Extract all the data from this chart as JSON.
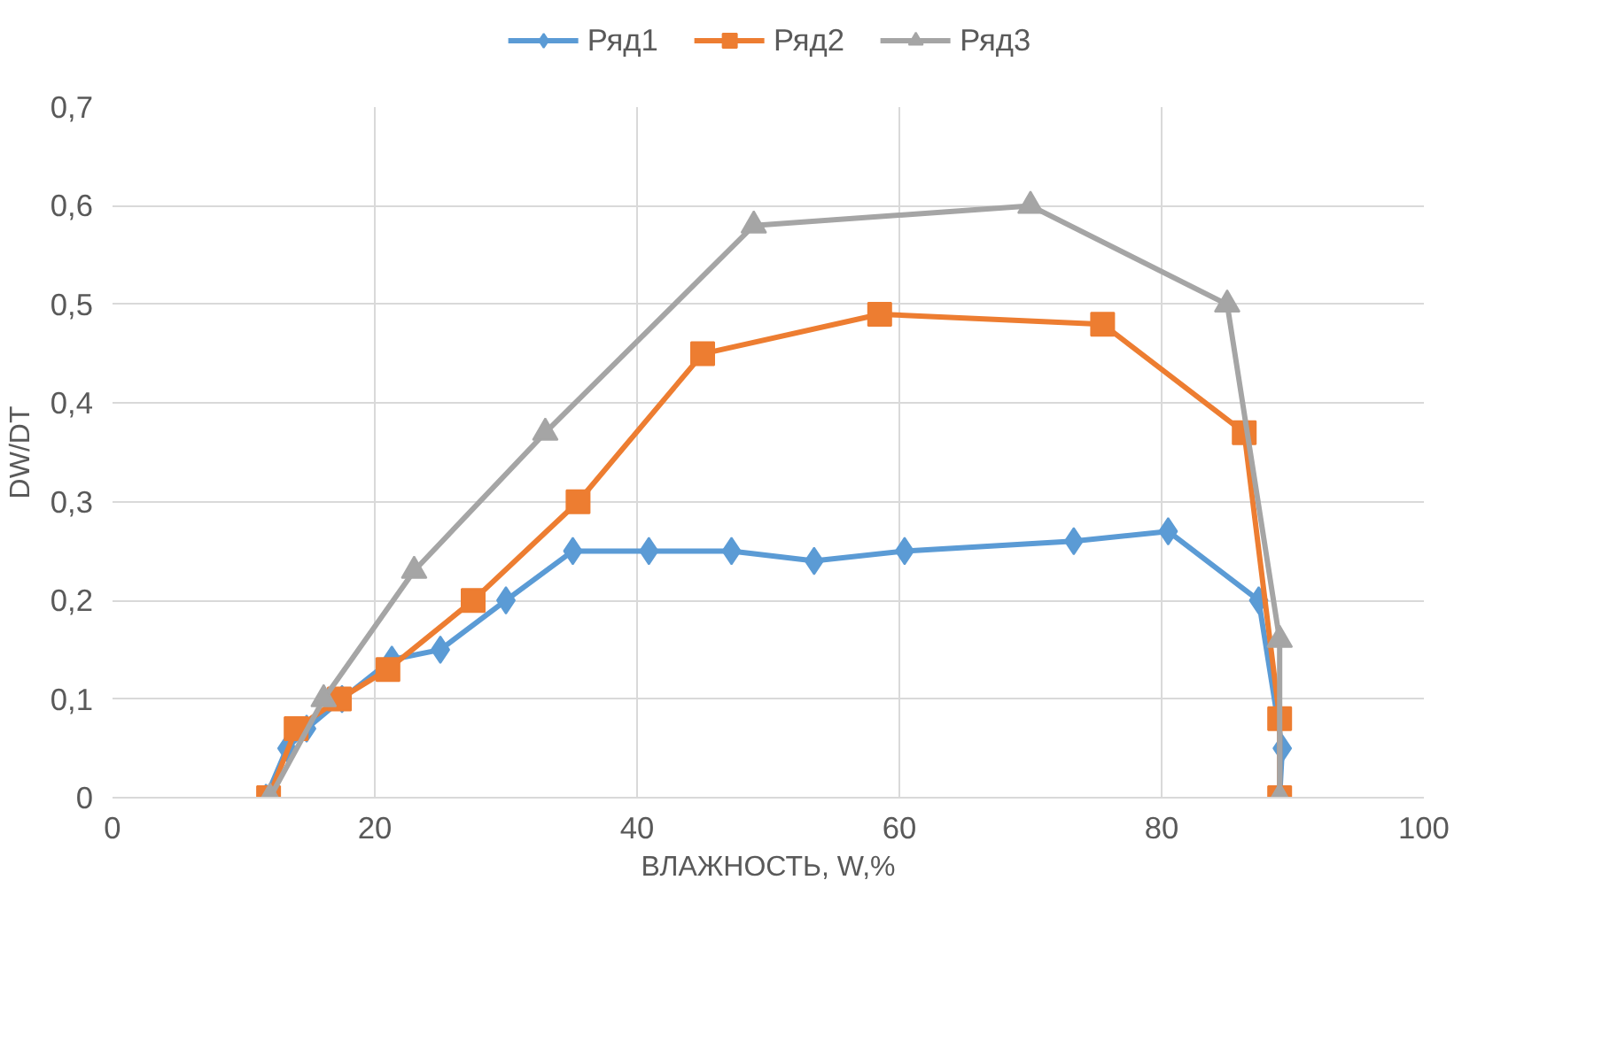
{
  "chart_data": {
    "type": "line",
    "xlabel": "ВЛАЖНОСТЬ, W,%",
    "ylabel": "DW/DT",
    "xlim": [
      0,
      100
    ],
    "xticks": [
      0,
      20,
      40,
      60,
      80,
      100
    ],
    "ylim": [
      0,
      0.7
    ],
    "yticks": [
      {
        "value": 0,
        "label": "0"
      },
      {
        "value": 0.1,
        "label": "0,1"
      },
      {
        "value": 0.2,
        "label": "0,2"
      },
      {
        "value": 0.3,
        "label": "0,3"
      },
      {
        "value": 0.4,
        "label": "0,4"
      },
      {
        "value": 0.5,
        "label": "0,5"
      },
      {
        "value": 0.6,
        "label": "0,6"
      },
      {
        "value": 0.7,
        "label": "0,7"
      }
    ],
    "grid": true,
    "legend": "top",
    "line_style": "solid",
    "series": [
      {
        "name": "Ряд1",
        "color": "#5b9bd5",
        "marker": "diamond",
        "x": [
          11.7,
          13.3,
          14.8,
          17.5,
          21.3,
          25,
          30,
          35.1,
          40.9,
          47.2,
          53.5,
          60.4,
          73.3,
          80.5,
          87.4,
          89.2,
          89
        ],
        "values": [
          0,
          0.05,
          0.07,
          0.1,
          0.14,
          0.15,
          0.2,
          0.25,
          0.25,
          0.25,
          0.24,
          0.25,
          0.26,
          0.27,
          0.2,
          0.05,
          0
        ]
      },
      {
        "name": "Ряд2",
        "color": "#ed7d31",
        "marker": "square",
        "x": [
          11.9,
          14,
          17.3,
          21,
          27.5,
          35.5,
          45,
          58.5,
          75.5,
          86.3,
          89,
          89
        ],
        "values": [
          0,
          0.07,
          0.1,
          0.13,
          0.2,
          0.3,
          0.45,
          0.49,
          0.48,
          0.37,
          0.08,
          0
        ]
      },
      {
        "name": "Ряд3",
        "color": "#a5a5a5",
        "marker": "triangle",
        "x": [
          12,
          16.1,
          23,
          33,
          48.9,
          70,
          85,
          89,
          89
        ],
        "values": [
          0,
          0.1,
          0.23,
          0.37,
          0.58,
          0.6,
          0.5,
          0.16,
          0
        ]
      }
    ]
  }
}
